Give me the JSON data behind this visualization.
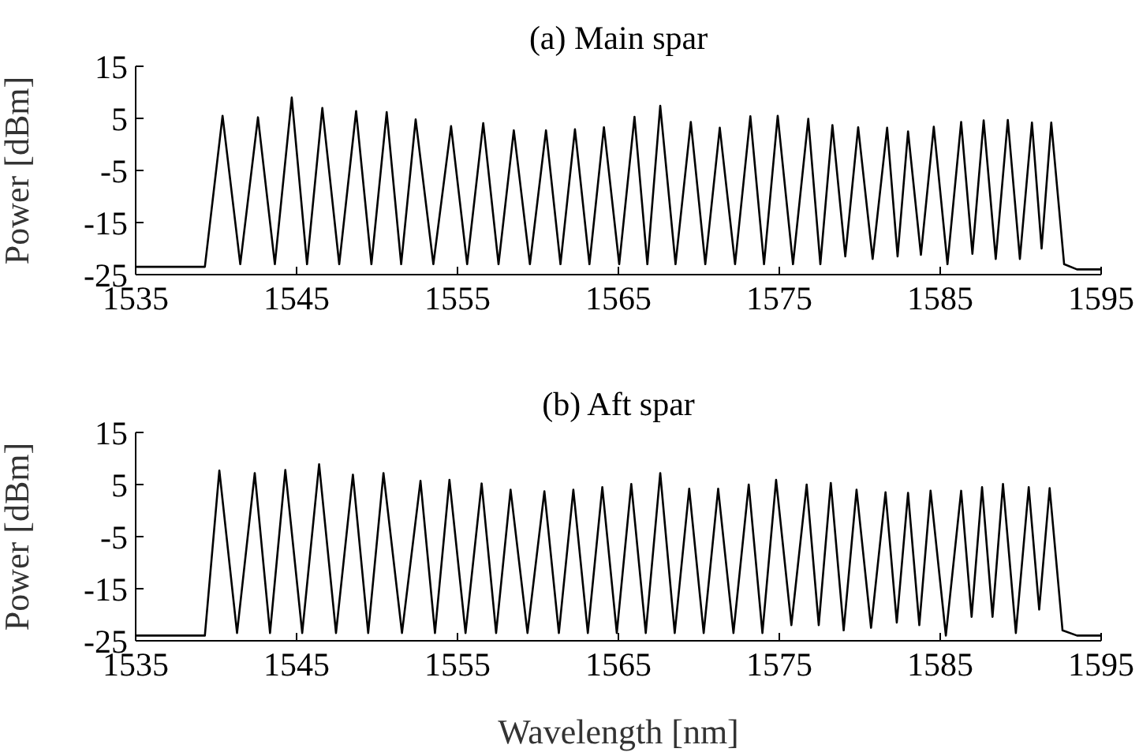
{
  "chart_data": [
    {
      "type": "line",
      "title": "(a) Main spar",
      "ylabel": "Power [dBm]",
      "xlim": [
        1535,
        1595
      ],
      "xticks": [
        1535,
        1545,
        1555,
        1565,
        1575,
        1585,
        1595
      ],
      "ylim": [
        -25,
        15
      ],
      "yticks": [
        -25,
        -15,
        -5,
        5,
        15
      ],
      "marker": "none",
      "series": [
        {
          "color": "#000000",
          "x": [
            1535,
            1537,
            1539.3,
            1540.4,
            1541.5,
            1542.6,
            1543.65,
            1544.7,
            1545.65,
            1546.6,
            1547.65,
            1548.7,
            1549.65,
            1550.6,
            1551.5,
            1552.4,
            1553.5,
            1554.6,
            1555.6,
            1556.6,
            1557.55,
            1558.5,
            1559.5,
            1560.5,
            1561.4,
            1562.3,
            1563.2,
            1564.1,
            1565.05,
            1566.0,
            1566.8,
            1567.6,
            1568.55,
            1569.5,
            1570.4,
            1571.3,
            1572.25,
            1573.2,
            1574.05,
            1574.9,
            1575.85,
            1576.8,
            1577.55,
            1578.3,
            1579.1,
            1579.9,
            1580.8,
            1581.7,
            1582.35,
            1583.0,
            1583.8,
            1584.6,
            1585.45,
            1586.3,
            1587.0,
            1587.7,
            1588.45,
            1589.2,
            1589.95,
            1590.7,
            1591.3,
            1591.9,
            1592.7,
            1593.5,
            1595
          ],
          "values": [
            -23.5,
            -23.5,
            -23.5,
            5.5,
            -23,
            5.2,
            -23,
            9.0,
            -23,
            7.0,
            -23,
            6.4,
            -23,
            6.2,
            -23,
            4.8,
            -23,
            3.5,
            -23,
            4.1,
            -23,
            2.7,
            -23,
            2.7,
            -23,
            2.9,
            -23,
            3.3,
            -23,
            5.3,
            -23,
            7.4,
            -23,
            4.3,
            -23,
            3.2,
            -23,
            5.4,
            -23,
            5.5,
            -23,
            4.9,
            -23,
            3.7,
            -21.5,
            3.3,
            -22,
            3.2,
            -21.5,
            2.5,
            -21.2,
            3.4,
            -23,
            4.3,
            -21,
            4.6,
            -22,
            4.7,
            -22,
            4.2,
            -20,
            4.2,
            -23,
            -24,
            -24
          ]
        }
      ]
    },
    {
      "type": "line",
      "title": "(b) Aft spar",
      "xlabel": "Wavelength [nm]",
      "ylabel": "Power [dBm]",
      "xlim": [
        1535,
        1595
      ],
      "xticks": [
        1535,
        1545,
        1555,
        1565,
        1575,
        1585,
        1595
      ],
      "ylim": [
        -25,
        15
      ],
      "yticks": [
        -25,
        -15,
        -5,
        5,
        15
      ],
      "marker": "none",
      "series": [
        {
          "color": "#000000",
          "x": [
            1535,
            1537,
            1539.3,
            1540.2,
            1541.3,
            1542.4,
            1543.35,
            1544.3,
            1545.35,
            1546.4,
            1547.45,
            1548.5,
            1549.45,
            1550.4,
            1551.55,
            1552.7,
            1553.6,
            1554.5,
            1555.5,
            1556.5,
            1557.4,
            1558.3,
            1559.35,
            1560.4,
            1561.3,
            1562.2,
            1563.1,
            1564.0,
            1564.9,
            1565.8,
            1566.7,
            1567.6,
            1568.5,
            1569.4,
            1570.3,
            1571.2,
            1572.15,
            1573.1,
            1573.95,
            1574.8,
            1575.75,
            1576.7,
            1577.45,
            1578.2,
            1579.0,
            1579.8,
            1580.7,
            1581.6,
            1582.3,
            1583.0,
            1583.7,
            1584.4,
            1585.35,
            1586.3,
            1586.95,
            1587.6,
            1588.25,
            1588.9,
            1589.7,
            1590.5,
            1591.15,
            1591.8,
            1592.6,
            1593.5,
            1595
          ],
          "values": [
            -24,
            -24,
            -24,
            7.7,
            -23.5,
            7.2,
            -23.5,
            7.8,
            -23.5,
            8.9,
            -23.5,
            6.9,
            -23.5,
            7.2,
            -23.5,
            5.7,
            -23.5,
            5.9,
            -23.5,
            5.2,
            -23.5,
            4.0,
            -23.5,
            3.7,
            -23.5,
            4.0,
            -23.5,
            4.5,
            -23.5,
            5.1,
            -23.5,
            7.2,
            -23.5,
            4.2,
            -23.5,
            4.2,
            -23.5,
            5.0,
            -23.5,
            5.9,
            -22,
            5.0,
            -22,
            5.3,
            -23,
            4.0,
            -22.5,
            3.5,
            -21.5,
            3.4,
            -22,
            3.8,
            -24,
            3.8,
            -20.4,
            4.5,
            -20.4,
            5.1,
            -23.5,
            4.5,
            -19,
            4.3,
            -23,
            -24,
            -24
          ]
        }
      ]
    }
  ]
}
